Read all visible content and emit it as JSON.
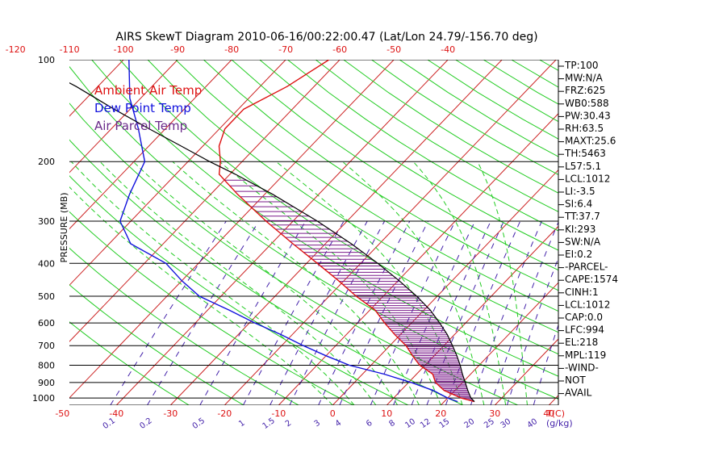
{
  "title": "AIRS SkewT Diagram 2010-06-16/00:22:00.47 (Lat/Lon 24.79/-156.70 deg)",
  "y_axis_label": "PRESSURE (MB)",
  "bottom_temp_unit": "T(C)",
  "mixing_ratio_unit": "(g/kg)",
  "legend": [
    {
      "label": "Ambient Air Temp",
      "color": "#dd1111"
    },
    {
      "label": "Dew Point Temp",
      "color": "#1111dd"
    },
    {
      "label": "Air Parcel Temp",
      "color": "#6a2a8a"
    }
  ],
  "colors": {
    "isotherm": "#cc2222",
    "dry_adiabat": "#22cc22",
    "moist_adiabat": "#22cc22",
    "mixing_ratio": "#4422aa",
    "pressure_line": "#000000",
    "temp": "#dd1111",
    "dewpoint": "#1111dd",
    "parcel": "#7a1a8a",
    "top_tick": "#dd1111",
    "bottom_tick": "#dd1111"
  },
  "indices": [
    "TP:100",
    "MW:N/A",
    "FRZ:625",
    "WB0:588",
    "PW:30.43",
    "RH:63.5",
    "MAXT:25.6",
    "TH:5463",
    "L57:5.1",
    "LCL:1012",
    "LI:-3.5",
    "SI:6.4",
    "TT:37.7",
    "KI:293",
    "SW:N/A",
    "EI:0.2",
    "-PARCEL-",
    "CAPE:1574",
    "CINH:1",
    "LCL:1012",
    "CAP:0.0",
    "LFC:994",
    "EL:218",
    "MPL:119",
    "-WIND-",
    "NOT",
    "AVAIL"
  ],
  "chart_data": {
    "type": "line",
    "title": "AIRS SkewT Diagram 2010-06-16/00:22:00.47 (Lat/Lon 24.79/-156.70 deg)",
    "ylabel": "PRESSURE (MB)",
    "xlabel": "T(C)",
    "y_scale": "log",
    "ylim": [
      1050,
      100
    ],
    "grid": true,
    "legend_position": "top-left",
    "pressure_ticks": [
      100,
      200,
      300,
      400,
      500,
      600,
      700,
      800,
      900,
      1000
    ],
    "top_temp_ticks": [
      -120,
      -110,
      -100,
      -90,
      -80,
      -70,
      -60,
      -50,
      -40
    ],
    "bottom_temp_ticks": [
      -50,
      -40,
      -30,
      -20,
      -10,
      0,
      10,
      20,
      30,
      40
    ],
    "mixing_ratio_ticks": [
      0.1,
      0.2,
      0.5,
      1,
      1.5,
      2,
      3,
      4,
      6,
      8,
      10,
      12,
      15,
      20,
      25,
      30,
      40
    ],
    "series": [
      {
        "name": "Ambient Air Temp",
        "pressure": [
          1025,
          1000,
          950,
          900,
          850,
          800,
          750,
          700,
          650,
          600,
          550,
          500,
          450,
          400,
          350,
          300,
          250,
          218,
          200,
          180,
          160,
          140,
          120,
          100
        ],
        "temp": [
          25.6,
          22.5,
          18.0,
          15.0,
          13.0,
          9.0,
          6.0,
          3.0,
          -1.0,
          -5.0,
          -9.0,
          -15.0,
          -21.0,
          -28.0,
          -36.0,
          -45.0,
          -55.0,
          -62.0,
          -64.0,
          -67.0,
          -69.0,
          -69.0,
          -65.0,
          -62.0
        ]
      },
      {
        "name": "Dew Point Temp",
        "pressure": [
          1025,
          1000,
          950,
          900,
          850,
          800,
          750,
          700,
          650,
          600,
          550,
          500,
          450,
          400,
          350,
          300,
          250,
          200,
          160,
          130,
          100
        ],
        "temp": [
          22.5,
          20.0,
          16.0,
          10.5,
          4.0,
          -4.0,
          -10.0,
          -16.0,
          -22.0,
          -29.0,
          -36.0,
          -44.0,
          -50.0,
          -56.0,
          -66.0,
          -72.0,
          -75.0,
          -78.0,
          -85.0,
          -92.0,
          -99.0
        ]
      },
      {
        "name": "Air Parcel Temp",
        "pressure": [
          1025,
          1000,
          950,
          900,
          850,
          800,
          750,
          700,
          650,
          600,
          550,
          500,
          450,
          400,
          350,
          300,
          250,
          218,
          200,
          180,
          160,
          140,
          120,
          100
        ],
        "temp": [
          25.6,
          24.3,
          22.4,
          20.5,
          18.5,
          16.5,
          14.2,
          11.6,
          8.7,
          5.2,
          1.2,
          -3.8,
          -9.8,
          -16.8,
          -25.2,
          -35.5,
          -48.5,
          -59.0,
          -66.0,
          -74.0,
          -83.0,
          -93.0,
          -104.0,
          -118.0
        ]
      }
    ]
  }
}
